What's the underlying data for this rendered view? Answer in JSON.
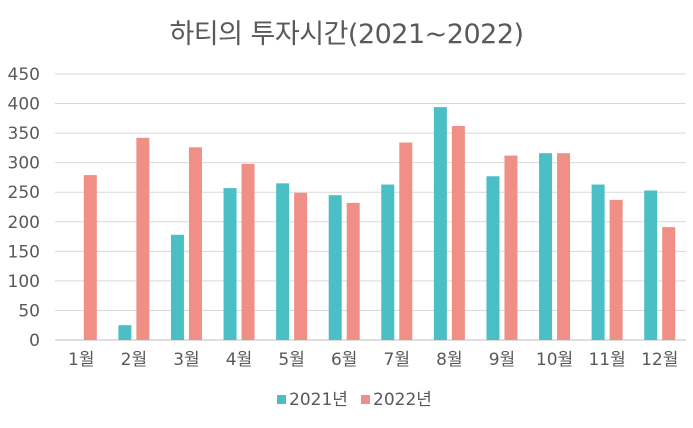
{
  "chart_data": {
    "type": "bar",
    "title": "하티의 투자시간(2021~2022)",
    "categories": [
      "1월",
      "2월",
      "3월",
      "4월",
      "5월",
      "6월",
      "7월",
      "8월",
      "9월",
      "10월",
      "11월",
      "12월"
    ],
    "series": [
      {
        "name": "2021년",
        "color": "#4BBFC6",
        "values": [
          null,
          25,
          178,
          257,
          265,
          245,
          263,
          394,
          277,
          316,
          263,
          253
        ]
      },
      {
        "name": "2022년",
        "color": "#F08F86",
        "values": [
          279,
          342,
          326,
          298,
          249,
          232,
          334,
          362,
          312,
          316,
          237,
          191
        ]
      }
    ],
    "y_ticks": [
      0,
      50,
      100,
      150,
      200,
      250,
      300,
      350,
      400,
      450
    ],
    "ylim": [
      0,
      450
    ],
    "grid": true,
    "legend_position": "bottom"
  }
}
